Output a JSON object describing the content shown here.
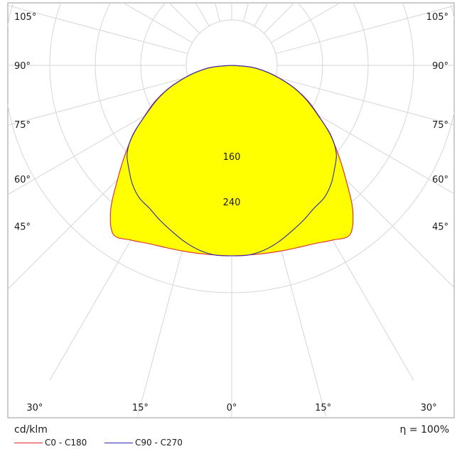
{
  "chart_data": {
    "type": "polar",
    "unit": "cd/klm",
    "efficiency": "η = 100%",
    "angle_ticks": [
      {
        "label": "105°",
        "angle": 105,
        "side": "left"
      },
      {
        "label": "105°",
        "angle": 105,
        "side": "right"
      },
      {
        "label": "90°",
        "angle": 90,
        "side": "left"
      },
      {
        "label": "90°",
        "angle": 90,
        "side": "right"
      },
      {
        "label": "75°",
        "angle": 75,
        "side": "left"
      },
      {
        "label": "75°",
        "angle": 75,
        "side": "right"
      },
      {
        "label": "60°",
        "angle": 60,
        "side": "left"
      },
      {
        "label": "60°",
        "angle": 60,
        "side": "right"
      },
      {
        "label": "45°",
        "angle": 45,
        "side": "left"
      },
      {
        "label": "45°",
        "angle": 45,
        "side": "right"
      },
      {
        "label": "30°",
        "angle": 30,
        "side": "left"
      },
      {
        "label": "15°",
        "angle": 15,
        "side": "left"
      },
      {
        "label": "0°",
        "angle": 0,
        "side": "center"
      },
      {
        "label": "15°",
        "angle": 15,
        "side": "right"
      },
      {
        "label": "30°",
        "angle": 30,
        "side": "right"
      }
    ],
    "ring_labels": [
      {
        "label": "160",
        "value": 160
      },
      {
        "label": "240",
        "value": 240
      }
    ],
    "rlim": [
      0,
      400
    ],
    "ring_values": [
      80,
      160,
      240,
      320,
      400
    ],
    "spoke_step_deg": 15,
    "grid": true,
    "legend_position": "bottom-left",
    "series": [
      {
        "name": "C0 - C180",
        "color": "#e0262f",
        "fill": "#ffff00",
        "angles": [
          0,
          5,
          10,
          15,
          20,
          25,
          30,
          35,
          40,
          45,
          50,
          55,
          60,
          65,
          70,
          75,
          80,
          85,
          90
        ],
        "values": [
          335,
          335,
          336,
          338,
          341,
          346,
          355,
          363,
          331,
          284,
          245,
          211,
          176,
          148,
          118,
          87,
          60,
          33,
          0
        ],
        "mirror": true
      },
      {
        "name": "C90 - C270",
        "color": "#2a2ab0",
        "fill": "none",
        "angles": [
          0,
          5,
          10,
          15,
          20,
          25,
          30,
          35,
          40,
          45,
          50,
          55,
          60,
          65,
          70,
          75,
          80,
          85,
          90
        ],
        "values": [
          335,
          335,
          330,
          321,
          310,
          300,
          290,
          284,
          272,
          256,
          240,
          212,
          175,
          146,
          117,
          86,
          59,
          33,
          0
        ],
        "mirror": true
      }
    ]
  }
}
